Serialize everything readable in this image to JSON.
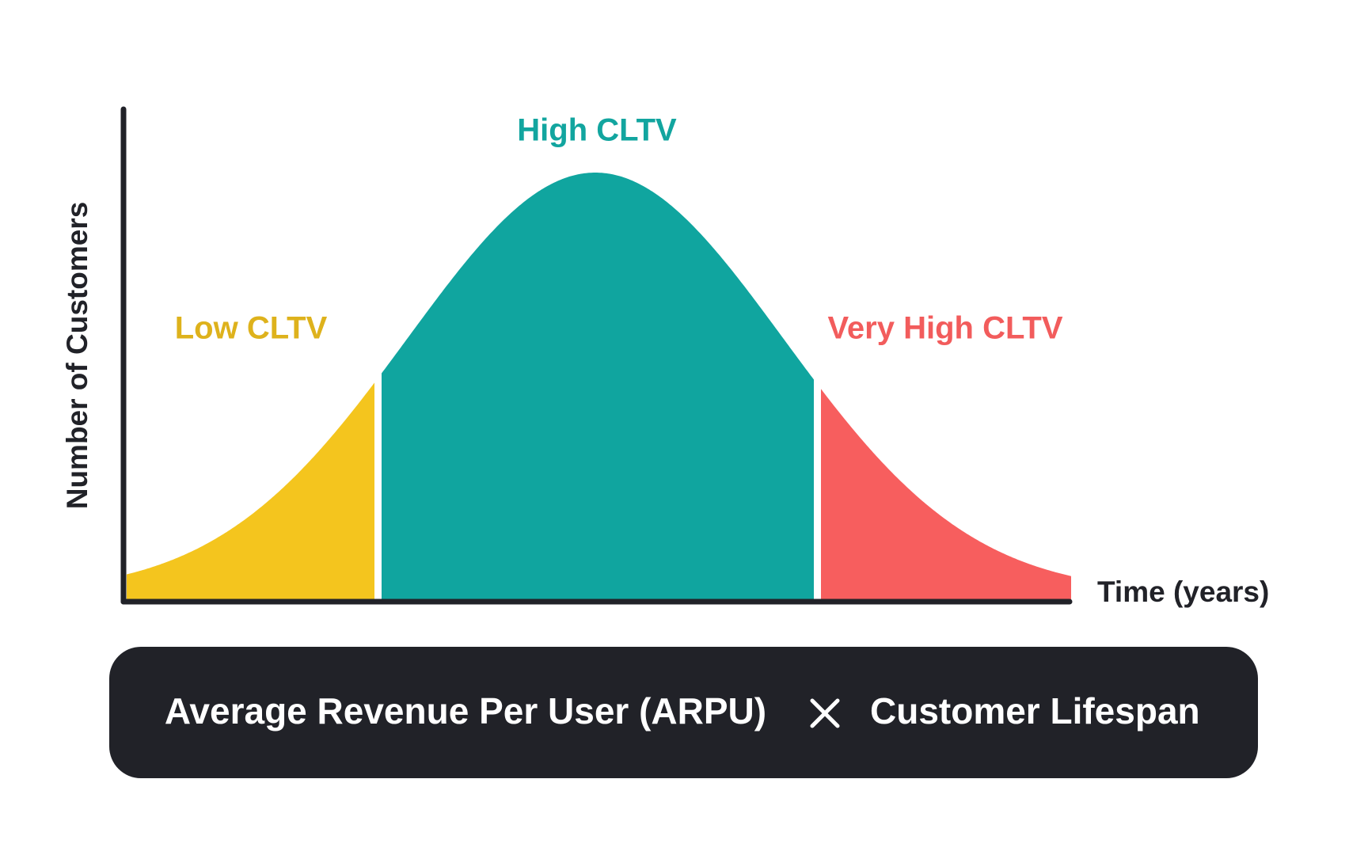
{
  "title": "High CLTV",
  "regions": [
    {
      "label": "Low CLTV"
    },
    {
      "label": "High CLTV"
    },
    {
      "label": "Very High CLTV"
    }
  ],
  "axes": {
    "y_label": "Number of Customers",
    "x_label": "Time (years)"
  },
  "formula": {
    "left": "Average Revenue Per User (ARPU)",
    "right": "Customer Lifespan"
  }
}
